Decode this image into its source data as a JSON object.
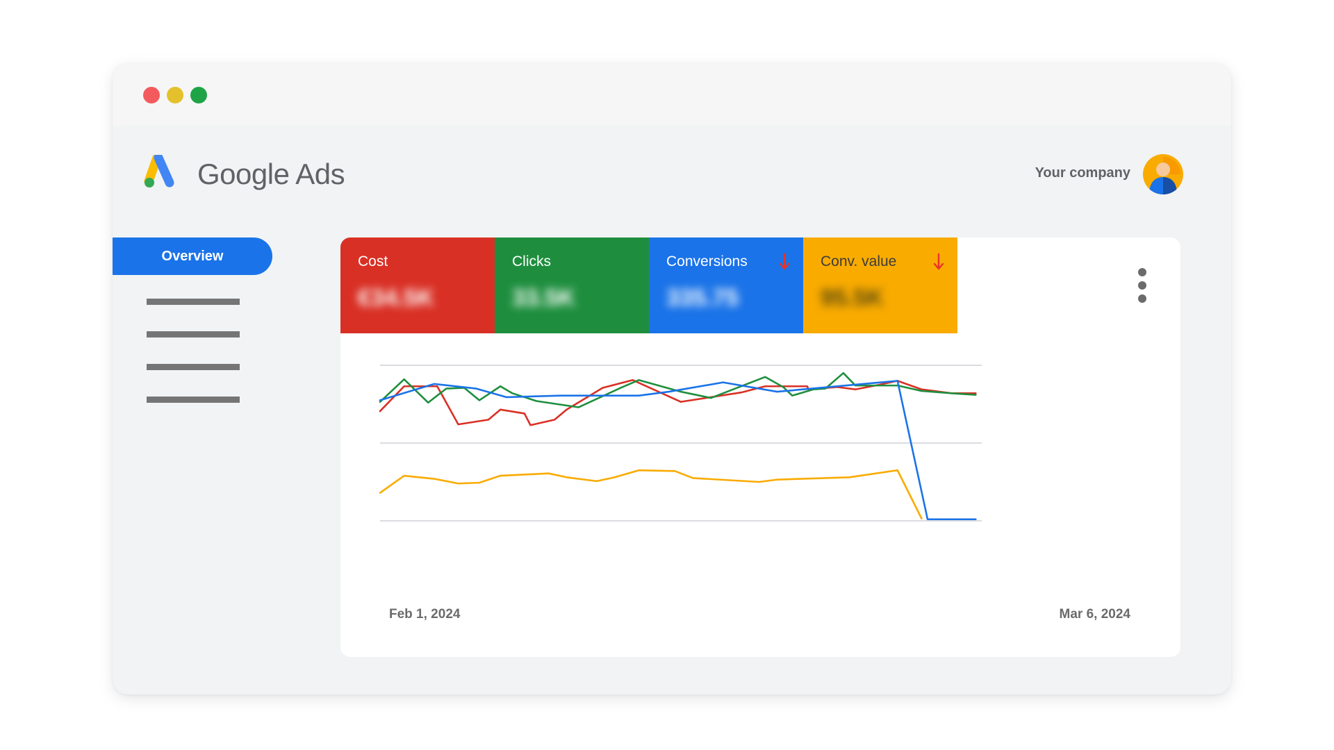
{
  "app": {
    "brand": "Google Ads",
    "company": "Your company"
  },
  "sidebar": {
    "active_item": "Overview",
    "placeholder_items": 4
  },
  "metrics": [
    {
      "label": "Cost",
      "value": "€34.5K",
      "color": "#d93025",
      "trend": ""
    },
    {
      "label": "Clicks",
      "value": "33.5K",
      "color": "#1e8e3e",
      "trend": ""
    },
    {
      "label": "Conversions",
      "value": "335.75",
      "color": "#1a73e8",
      "trend": "down"
    },
    {
      "label": "Conv. value",
      "value": "95.5K",
      "color": "#f9ab00",
      "trend": "down"
    }
  ],
  "colors": {
    "cost": "#d93025",
    "clicks": "#1e8e3e",
    "conversions": "#1a73e8",
    "conv_value": "#f9ab00",
    "trend_down_arrow": "#e8332a"
  },
  "icons": [
    "google-ads-logo",
    "avatar-icon",
    "arrow-down-icon",
    "more-vert-icon"
  ],
  "chart_data": {
    "type": "line",
    "x_start_label": "Feb 1, 2024",
    "x_end_label": "Mar 6, 2024",
    "x": [
      "2024-02-01",
      "2024-03-06"
    ],
    "ylim": [
      0,
      2
    ],
    "grid": true,
    "gridlines": 3,
    "series": [
      {
        "name": "Cost",
        "color": "#d93025",
        "values": [
          [
            0.0,
            1.41
          ],
          [
            0.04,
            1.73
          ],
          [
            0.095,
            1.73
          ],
          [
            0.13,
            1.24
          ],
          [
            0.18,
            1.3
          ],
          [
            0.2,
            1.43
          ],
          [
            0.24,
            1.38
          ],
          [
            0.25,
            1.23
          ],
          [
            0.29,
            1.3
          ],
          [
            0.31,
            1.43
          ],
          [
            0.37,
            1.71
          ],
          [
            0.42,
            1.81
          ],
          [
            0.5,
            1.53
          ],
          [
            0.6,
            1.65
          ],
          [
            0.64,
            1.73
          ],
          [
            0.71,
            1.73
          ],
          [
            0.712,
            1.69
          ],
          [
            0.76,
            1.72
          ],
          [
            0.79,
            1.69
          ],
          [
            0.83,
            1.75
          ],
          [
            0.86,
            1.8
          ],
          [
            0.9,
            1.69
          ],
          [
            0.95,
            1.64
          ],
          [
            0.99,
            1.64
          ]
        ]
      },
      {
        "name": "Clicks",
        "color": "#1e8e3e",
        "values": [
          [
            0.0,
            1.53
          ],
          [
            0.04,
            1.82
          ],
          [
            0.08,
            1.52
          ],
          [
            0.11,
            1.7
          ],
          [
            0.14,
            1.71
          ],
          [
            0.165,
            1.55
          ],
          [
            0.2,
            1.73
          ],
          [
            0.22,
            1.64
          ],
          [
            0.26,
            1.54
          ],
          [
            0.33,
            1.46
          ],
          [
            0.4,
            1.71
          ],
          [
            0.43,
            1.81
          ],
          [
            0.5,
            1.66
          ],
          [
            0.55,
            1.58
          ],
          [
            0.64,
            1.85
          ],
          [
            0.67,
            1.72
          ],
          [
            0.685,
            1.61
          ],
          [
            0.72,
            1.69
          ],
          [
            0.74,
            1.7
          ],
          [
            0.77,
            1.9
          ],
          [
            0.79,
            1.74
          ],
          [
            0.86,
            1.74
          ],
          [
            0.9,
            1.67
          ],
          [
            0.95,
            1.64
          ],
          [
            0.99,
            1.62
          ]
        ]
      },
      {
        "name": "Conversions",
        "color": "#1a73e8",
        "values": [
          [
            0.0,
            1.55
          ],
          [
            0.09,
            1.76
          ],
          [
            0.16,
            1.7
          ],
          [
            0.21,
            1.59
          ],
          [
            0.3,
            1.61
          ],
          [
            0.43,
            1.61
          ],
          [
            0.48,
            1.66
          ],
          [
            0.57,
            1.78
          ],
          [
            0.66,
            1.66
          ],
          [
            0.86,
            1.8
          ],
          [
            0.91,
            0.02
          ],
          [
            0.99,
            0.02
          ]
        ]
      },
      {
        "name": "Conv. value",
        "color": "#f9ab00",
        "values": [
          [
            0.0,
            0.36
          ],
          [
            0.04,
            0.58
          ],
          [
            0.09,
            0.54
          ],
          [
            0.13,
            0.48
          ],
          [
            0.165,
            0.49
          ],
          [
            0.2,
            0.58
          ],
          [
            0.28,
            0.61
          ],
          [
            0.31,
            0.56
          ],
          [
            0.36,
            0.51
          ],
          [
            0.39,
            0.56
          ],
          [
            0.43,
            0.65
          ],
          [
            0.49,
            0.64
          ],
          [
            0.52,
            0.55
          ],
          [
            0.63,
            0.5
          ],
          [
            0.66,
            0.53
          ],
          [
            0.78,
            0.56
          ],
          [
            0.86,
            0.65
          ],
          [
            0.9,
            0.03
          ]
        ]
      }
    ]
  }
}
